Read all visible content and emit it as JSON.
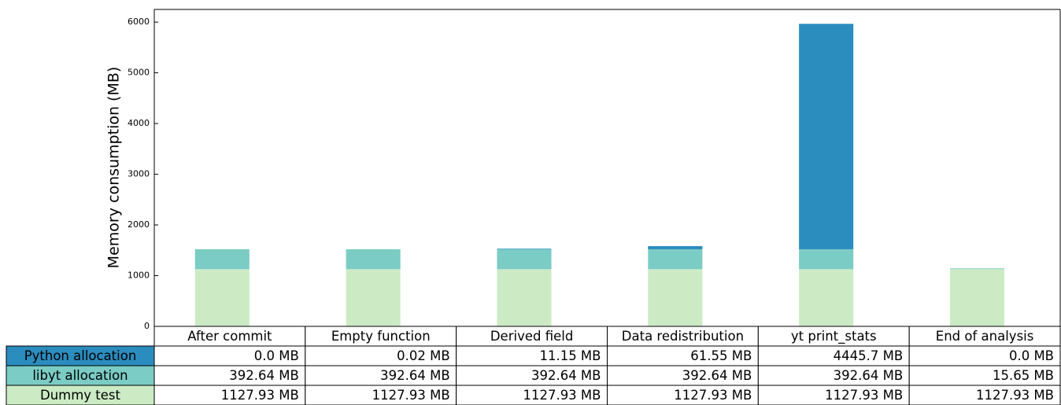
{
  "chart_data": {
    "type": "bar",
    "stacked": true,
    "ylabel": "Memory consumption (MB)",
    "categories": [
      "After commit",
      "Empty function",
      "Derived field",
      "Data redistribution",
      "yt print_stats",
      "End of analysis"
    ],
    "series": [
      {
        "name": "Python allocation",
        "color": "#2b8cbe",
        "values": [
          0.0,
          0.02,
          11.15,
          61.55,
          4445.7,
          0.0
        ],
        "value_labels": [
          "0.0 MB",
          "0.02 MB",
          "11.15 MB",
          "61.55 MB",
          "4445.7 MB",
          "0.0 MB"
        ]
      },
      {
        "name": "libyt allocation",
        "color": "#7bccc4",
        "values": [
          392.64,
          392.64,
          392.64,
          392.64,
          392.64,
          15.65
        ],
        "value_labels": [
          "392.64 MB",
          "392.64 MB",
          "392.64 MB",
          "392.64 MB",
          "392.64 MB",
          "15.65 MB"
        ]
      },
      {
        "name": "Dummy test",
        "color": "#ccebc5",
        "values": [
          1127.93,
          1127.93,
          1127.93,
          1127.93,
          1127.93,
          1127.93
        ],
        "value_labels": [
          "1127.93 MB",
          "1127.93 MB",
          "1127.93 MB",
          "1127.93 MB",
          "1127.93 MB",
          "1127.93 MB"
        ]
      }
    ],
    "ylim": [
      0,
      6250
    ],
    "yticks": [
      0,
      1000,
      2000,
      3000,
      4000,
      5000,
      6000
    ]
  }
}
